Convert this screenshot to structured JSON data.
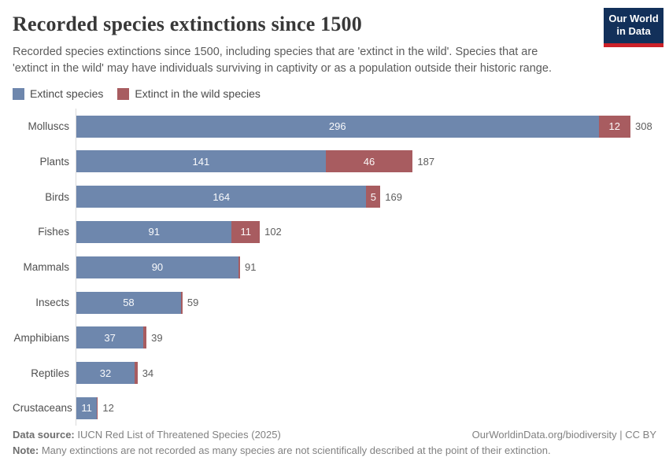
{
  "header": {
    "title": "Recorded species extinctions since 1500",
    "subtitle": "Recorded species extinctions since 1500, including species that are 'extinct in the wild'. Species that are 'extinct in the wild' may have individuals surviving in captivity or as a population outside their historic range.",
    "logo": {
      "line1": "Our World",
      "line2": "in Data",
      "bg_color": "#12305a",
      "accent_color": "#cc2128"
    }
  },
  "legend": {
    "items": [
      {
        "label": "Extinct species",
        "color": "#6e87ad"
      },
      {
        "label": "Extinct in the wild species",
        "color": "#a85c60"
      }
    ]
  },
  "chart_data": {
    "type": "bar",
    "orientation": "horizontal",
    "stacked": true,
    "title": "Recorded species extinctions since 1500",
    "xlabel": "",
    "ylabel": "",
    "xmax": 308,
    "grid": false,
    "legend_position": "top-left",
    "categories": [
      "Molluscs",
      "Plants",
      "Birds",
      "Fishes",
      "Mammals",
      "Insects",
      "Amphibians",
      "Reptiles",
      "Crustaceans"
    ],
    "series": [
      {
        "name": "Extinct species",
        "color": "#6e87ad",
        "values": [
          296,
          141,
          164,
          91,
          90,
          58,
          37,
          32,
          11
        ]
      },
      {
        "name": "Extinct in the wild species",
        "color": "#a85c60",
        "values": [
          12,
          46,
          5,
          11,
          1,
          1,
          2,
          2,
          1
        ]
      }
    ],
    "totals": [
      308,
      187,
      169,
      102,
      91,
      59,
      39,
      34,
      12
    ]
  },
  "footer": {
    "datasource_label": "Data source:",
    "datasource_value": " IUCN Red List of Threatened Species (2025)",
    "link": "OurWorldinData.org/biodiversity | CC BY",
    "note_label": "Note:",
    "note_value": " Many extinctions are not recorded as many species are not scientifically described at the point of their extinction."
  }
}
